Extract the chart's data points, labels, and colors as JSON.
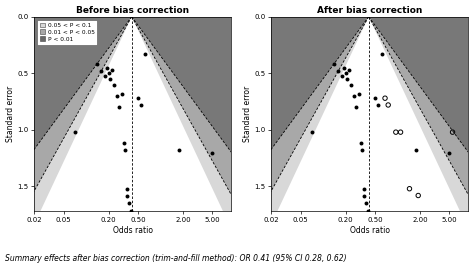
{
  "title_left": "Before bias correction",
  "title_right": "After bias correction",
  "xlabel": "Odds ratio",
  "ylabel": "Standard error",
  "summary_text": "Summary effects after bias correction (trim-and-fill method): OR 0.41 (95% CI 0.28, 0.62)",
  "xlim": [
    0.02,
    9.0
  ],
  "ymax": 1.72,
  "xticks": [
    0.02,
    0.05,
    0.2,
    0.5,
    2.0,
    5.0
  ],
  "xtick_labels": [
    "0.02",
    "0.05",
    "0.20",
    "0.50",
    "2.00",
    "5.00"
  ],
  "yticks": [
    0.0,
    0.5,
    1.0,
    1.5
  ],
  "ytick_labels": [
    "0.0",
    "0.5",
    "1.0",
    "1.5"
  ],
  "or_value": 0.41,
  "legend_labels": [
    "0.05 < P < 0.1",
    "0.01 < P < 0.05",
    "P < 0.01"
  ],
  "legend_colors": [
    "#d8d8d8",
    "#a8a8a8",
    "#686868"
  ],
  "bg_outer": "#787878",
  "bg_z256": "#a8a8a8",
  "bg_z196": "#d8d8d8",
  "bg_z164": "#ffffff",
  "fig_bg": "#ffffff",
  "ax_bg": "#787878",
  "points_before": [
    [
      0.07,
      1.02
    ],
    [
      0.14,
      0.42
    ],
    [
      0.16,
      0.48
    ],
    [
      0.18,
      0.52
    ],
    [
      0.19,
      0.45
    ],
    [
      0.2,
      0.5
    ],
    [
      0.21,
      0.55
    ],
    [
      0.22,
      0.47
    ],
    [
      0.24,
      0.6
    ],
    [
      0.26,
      0.7
    ],
    [
      0.3,
      0.68
    ],
    [
      0.28,
      0.8
    ],
    [
      0.32,
      1.12
    ],
    [
      0.33,
      1.18
    ],
    [
      0.35,
      1.52
    ],
    [
      0.36,
      1.58
    ],
    [
      0.38,
      1.65
    ],
    [
      0.4,
      1.72
    ],
    [
      0.5,
      0.72
    ],
    [
      0.55,
      0.78
    ],
    [
      0.62,
      0.33
    ],
    [
      1.8,
      1.18
    ],
    [
      5.0,
      1.2
    ]
  ],
  "points_after_filled": [
    [
      0.07,
      1.02
    ],
    [
      0.14,
      0.42
    ],
    [
      0.16,
      0.48
    ],
    [
      0.18,
      0.52
    ],
    [
      0.19,
      0.45
    ],
    [
      0.2,
      0.5
    ],
    [
      0.21,
      0.55
    ],
    [
      0.22,
      0.47
    ],
    [
      0.24,
      0.6
    ],
    [
      0.26,
      0.7
    ],
    [
      0.3,
      0.68
    ],
    [
      0.28,
      0.8
    ],
    [
      0.32,
      1.12
    ],
    [
      0.33,
      1.18
    ],
    [
      0.35,
      1.52
    ],
    [
      0.36,
      1.58
    ],
    [
      0.38,
      1.65
    ],
    [
      0.4,
      1.72
    ],
    [
      0.5,
      0.72
    ],
    [
      0.55,
      0.78
    ],
    [
      0.62,
      0.33
    ],
    [
      1.8,
      1.18
    ],
    [
      5.0,
      1.2
    ]
  ],
  "points_after_imputed": [
    [
      0.68,
      0.72
    ],
    [
      0.75,
      0.78
    ],
    [
      0.95,
      1.02
    ],
    [
      1.1,
      1.02
    ],
    [
      1.45,
      1.52
    ],
    [
      1.9,
      1.58
    ],
    [
      5.5,
      1.02
    ]
  ]
}
